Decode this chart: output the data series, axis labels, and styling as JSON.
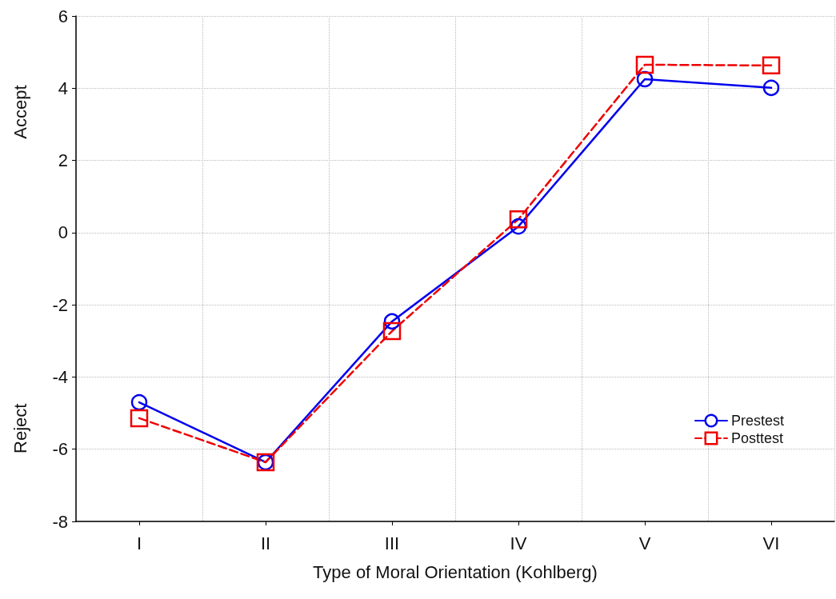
{
  "chart_data": {
    "type": "line",
    "xlabel": "Type of Moral Orientation (Kohlberg)",
    "annotations": [
      "Accept",
      "Reject"
    ],
    "categories": [
      "I",
      "II",
      "III",
      "IV",
      "V",
      "VI"
    ],
    "series": [
      {
        "name": "Prestest",
        "color": "#0000ee",
        "marker": "circle",
        "line_style": "solid",
        "values": [
          -4.7,
          -6.36,
          -2.46,
          0.17,
          4.25,
          4.01
        ]
      },
      {
        "name": "Posttest",
        "color": "#ee0000",
        "marker": "square",
        "line_style": "dashed",
        "values": [
          -5.14,
          -6.36,
          -2.73,
          0.37,
          4.65,
          4.63
        ]
      }
    ],
    "ylim": [
      -8,
      6
    ],
    "yticks": [
      -8,
      -6,
      -4,
      -2,
      0,
      2,
      4,
      6
    ],
    "grid": true,
    "legend": "bottom right"
  }
}
